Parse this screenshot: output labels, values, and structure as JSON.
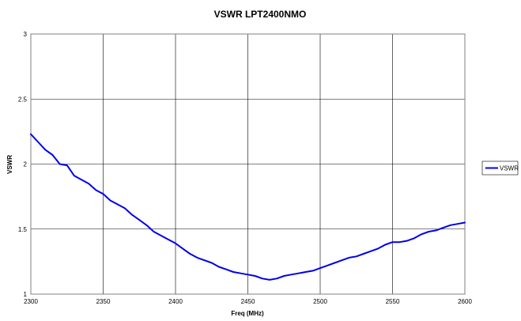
{
  "chart_data": {
    "type": "line",
    "title": "VSWR LPT2400NMO",
    "xlabel": "Freq (MHz)",
    "ylabel": "VSWR",
    "xlim": [
      2300,
      2600
    ],
    "ylim": [
      1,
      3
    ],
    "xticks": [
      "2300",
      "2350",
      "2400",
      "2450",
      "2500",
      "2550",
      "2600"
    ],
    "yticks": [
      "1",
      "1.5",
      "2",
      "2.5",
      "3"
    ],
    "grid": true,
    "legend": "right",
    "series": [
      {
        "name": "VSWR",
        "color": "#0000ee",
        "x": [
          2300,
          2305,
          2310,
          2315,
          2320,
          2325,
          2330,
          2335,
          2340,
          2345,
          2350,
          2355,
          2360,
          2365,
          2370,
          2375,
          2380,
          2385,
          2390,
          2395,
          2400,
          2405,
          2410,
          2415,
          2420,
          2425,
          2430,
          2435,
          2440,
          2445,
          2450,
          2455,
          2460,
          2465,
          2470,
          2475,
          2480,
          2485,
          2490,
          2495,
          2500,
          2505,
          2510,
          2515,
          2520,
          2525,
          2530,
          2535,
          2540,
          2545,
          2550,
          2555,
          2560,
          2565,
          2570,
          2575,
          2580,
          2585,
          2590,
          2595,
          2600
        ],
        "values": [
          2.23,
          2.17,
          2.11,
          2.07,
          2.0,
          1.99,
          1.91,
          1.88,
          1.85,
          1.8,
          1.77,
          1.72,
          1.69,
          1.66,
          1.61,
          1.57,
          1.53,
          1.48,
          1.45,
          1.42,
          1.39,
          1.35,
          1.31,
          1.28,
          1.26,
          1.24,
          1.21,
          1.19,
          1.17,
          1.16,
          1.15,
          1.14,
          1.12,
          1.11,
          1.12,
          1.14,
          1.15,
          1.16,
          1.17,
          1.18,
          1.2,
          1.22,
          1.24,
          1.26,
          1.28,
          1.29,
          1.31,
          1.33,
          1.35,
          1.38,
          1.4,
          1.4,
          1.41,
          1.43,
          1.46,
          1.48,
          1.49,
          1.51,
          1.53,
          1.54,
          1.55
        ]
      }
    ]
  }
}
